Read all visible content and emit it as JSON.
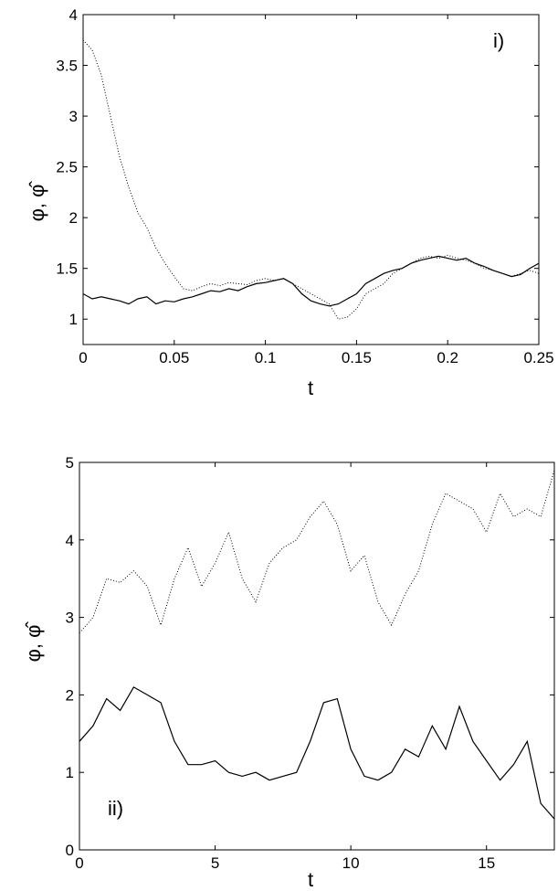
{
  "chart_data": [
    {
      "type": "line",
      "panel_label": "i)",
      "xlabel": "t",
      "ylabel": "φ, φ̂",
      "xlim": [
        0,
        0.25
      ],
      "ylim": [
        0.75,
        4
      ],
      "xticks": [
        0,
        0.05,
        0.1,
        0.15,
        0.2,
        0.25
      ],
      "xtick_labels": [
        "0",
        "0.05",
        "0.1",
        "0.15",
        "0.2",
        "0.25"
      ],
      "yticks": [
        1,
        1.5,
        2,
        2.5,
        3,
        3.5,
        4
      ],
      "ytick_labels": [
        "1",
        "1.5",
        "2",
        "2.5",
        "3",
        "3.5",
        "4"
      ],
      "grid": false,
      "series": [
        {
          "style": "dotted",
          "x": [
            0,
            0.005,
            0.01,
            0.015,
            0.02,
            0.025,
            0.03,
            0.035,
            0.04,
            0.045,
            0.05,
            0.055,
            0.06,
            0.065,
            0.07,
            0.075,
            0.08,
            0.085,
            0.09,
            0.095,
            0.1,
            0.105,
            0.11,
            0.115,
            0.12,
            0.125,
            0.13,
            0.135,
            0.14,
            0.145,
            0.15,
            0.155,
            0.16,
            0.165,
            0.17,
            0.175,
            0.18,
            0.185,
            0.19,
            0.195,
            0.2,
            0.205,
            0.21,
            0.215,
            0.22,
            0.225,
            0.23,
            0.235,
            0.24,
            0.245,
            0.25
          ],
          "y": [
            3.75,
            3.65,
            3.4,
            3.0,
            2.6,
            2.3,
            2.05,
            1.9,
            1.7,
            1.55,
            1.42,
            1.3,
            1.28,
            1.32,
            1.35,
            1.33,
            1.36,
            1.35,
            1.34,
            1.38,
            1.4,
            1.38,
            1.4,
            1.35,
            1.3,
            1.25,
            1.2,
            1.15,
            1.0,
            1.02,
            1.1,
            1.25,
            1.3,
            1.35,
            1.45,
            1.5,
            1.55,
            1.6,
            1.62,
            1.6,
            1.63,
            1.6,
            1.58,
            1.55,
            1.5,
            1.48,
            1.45,
            1.42,
            1.45,
            1.48,
            1.45
          ]
        },
        {
          "style": "solid",
          "x": [
            0,
            0.005,
            0.01,
            0.015,
            0.02,
            0.025,
            0.03,
            0.035,
            0.04,
            0.045,
            0.05,
            0.055,
            0.06,
            0.065,
            0.07,
            0.075,
            0.08,
            0.085,
            0.09,
            0.095,
            0.1,
            0.105,
            0.11,
            0.115,
            0.12,
            0.125,
            0.13,
            0.135,
            0.14,
            0.145,
            0.15,
            0.155,
            0.16,
            0.165,
            0.17,
            0.175,
            0.18,
            0.185,
            0.19,
            0.195,
            0.2,
            0.205,
            0.21,
            0.215,
            0.22,
            0.225,
            0.23,
            0.235,
            0.24,
            0.245,
            0.25
          ],
          "y": [
            1.25,
            1.2,
            1.22,
            1.2,
            1.18,
            1.15,
            1.2,
            1.22,
            1.15,
            1.18,
            1.17,
            1.2,
            1.22,
            1.25,
            1.28,
            1.27,
            1.3,
            1.28,
            1.32,
            1.35,
            1.36,
            1.38,
            1.4,
            1.35,
            1.25,
            1.18,
            1.15,
            1.13,
            1.15,
            1.2,
            1.25,
            1.35,
            1.4,
            1.45,
            1.48,
            1.5,
            1.55,
            1.58,
            1.6,
            1.62,
            1.6,
            1.58,
            1.6,
            1.55,
            1.52,
            1.48,
            1.45,
            1.42,
            1.44,
            1.5,
            1.55
          ]
        }
      ]
    },
    {
      "type": "line",
      "panel_label": "ii)",
      "xlabel": "t",
      "ylabel": "φ, φ̂",
      "xlim": [
        0,
        17.5
      ],
      "ylim": [
        0,
        5
      ],
      "xticks": [
        0,
        5,
        10,
        15
      ],
      "xtick_labels": [
        "0",
        "5",
        "10",
        "15"
      ],
      "yticks": [
        0,
        1,
        2,
        3,
        4,
        5
      ],
      "ytick_labels": [
        "0",
        "1",
        "2",
        "3",
        "4",
        "5"
      ],
      "grid": false,
      "series": [
        {
          "style": "dotted",
          "x": [
            0,
            0.5,
            1,
            1.5,
            2,
            2.5,
            3,
            3.5,
            4,
            4.5,
            5,
            5.5,
            6,
            6.5,
            7,
            7.5,
            8,
            8.5,
            9,
            9.5,
            10,
            10.5,
            11,
            11.5,
            12,
            12.5,
            13,
            13.5,
            14,
            14.5,
            15,
            15.5,
            16,
            16.5,
            17,
            17.5
          ],
          "y": [
            2.8,
            3.0,
            3.5,
            3.45,
            3.6,
            3.4,
            2.9,
            3.5,
            3.9,
            3.4,
            3.7,
            4.1,
            3.5,
            3.2,
            3.7,
            3.9,
            4.0,
            4.3,
            4.5,
            4.2,
            3.6,
            3.8,
            3.2,
            2.9,
            3.3,
            3.6,
            4.2,
            4.6,
            4.5,
            4.4,
            4.1,
            4.6,
            4.3,
            4.4,
            4.3,
            4.9
          ]
        },
        {
          "style": "solid",
          "x": [
            0,
            0.5,
            1,
            1.5,
            2,
            2.5,
            3,
            3.5,
            4,
            4.5,
            5,
            5.5,
            6,
            6.5,
            7,
            7.5,
            8,
            8.5,
            9,
            9.5,
            10,
            10.5,
            11,
            11.5,
            12,
            12.5,
            13,
            13.5,
            14,
            14.5,
            15,
            15.5,
            16,
            16.5,
            17,
            17.5
          ],
          "y": [
            1.4,
            1.6,
            1.95,
            1.8,
            2.1,
            2.0,
            1.9,
            1.4,
            1.1,
            1.1,
            1.15,
            1.0,
            0.95,
            1.0,
            0.9,
            0.95,
            1.0,
            1.4,
            1.9,
            1.95,
            1.3,
            0.95,
            0.9,
            1.0,
            1.3,
            1.2,
            1.6,
            1.3,
            1.85,
            1.4,
            1.15,
            0.9,
            1.1,
            1.4,
            0.6,
            0.4
          ]
        }
      ]
    }
  ]
}
